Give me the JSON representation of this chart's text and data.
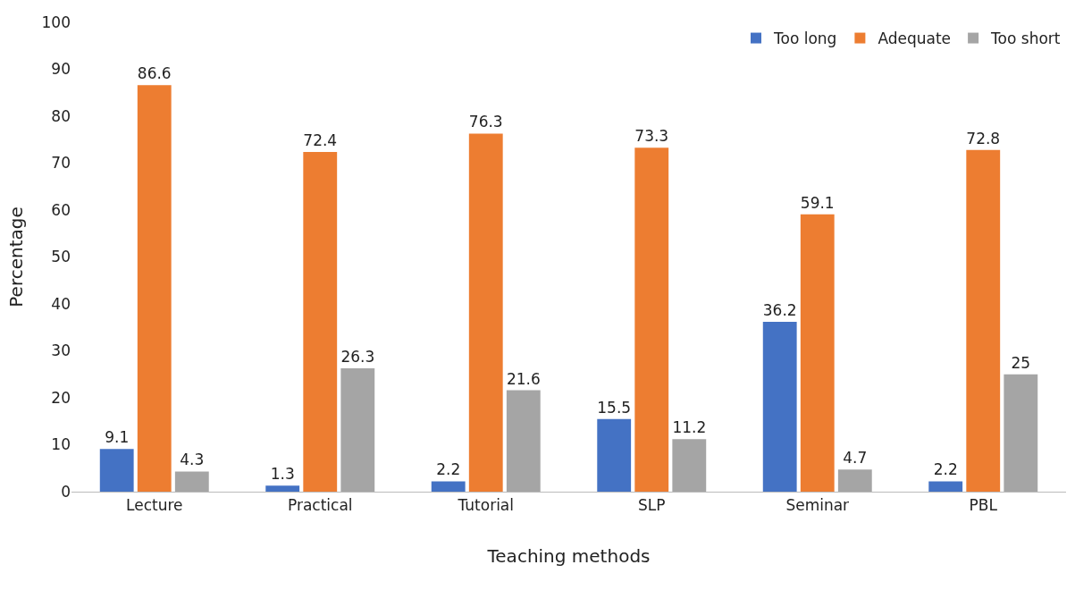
{
  "chart_data": {
    "type": "bar",
    "xlabel": "Teaching methods",
    "ylabel": "Percentage",
    "categories": [
      "Lecture",
      "Practical",
      "Tutorial",
      "SLP",
      "Seminar",
      "PBL"
    ],
    "series": [
      {
        "name": "Too long",
        "color": "#4472c4",
        "values": [
          9.1,
          1.3,
          2.2,
          15.5,
          36.2,
          2.2
        ]
      },
      {
        "name": "Adequate",
        "color": "#ed7d31",
        "values": [
          86.6,
          72.4,
          76.3,
          73.3,
          59.1,
          72.8
        ]
      },
      {
        "name": "Too short",
        "color": "#a5a5a5",
        "values": [
          4.3,
          26.3,
          21.6,
          11.2,
          4.7,
          25
        ]
      }
    ],
    "ylim": [
      0,
      100
    ],
    "yticks": [
      0,
      10,
      20,
      30,
      40,
      50,
      60,
      70,
      80,
      90,
      100
    ],
    "data_labels": true,
    "legend": "top right"
  }
}
